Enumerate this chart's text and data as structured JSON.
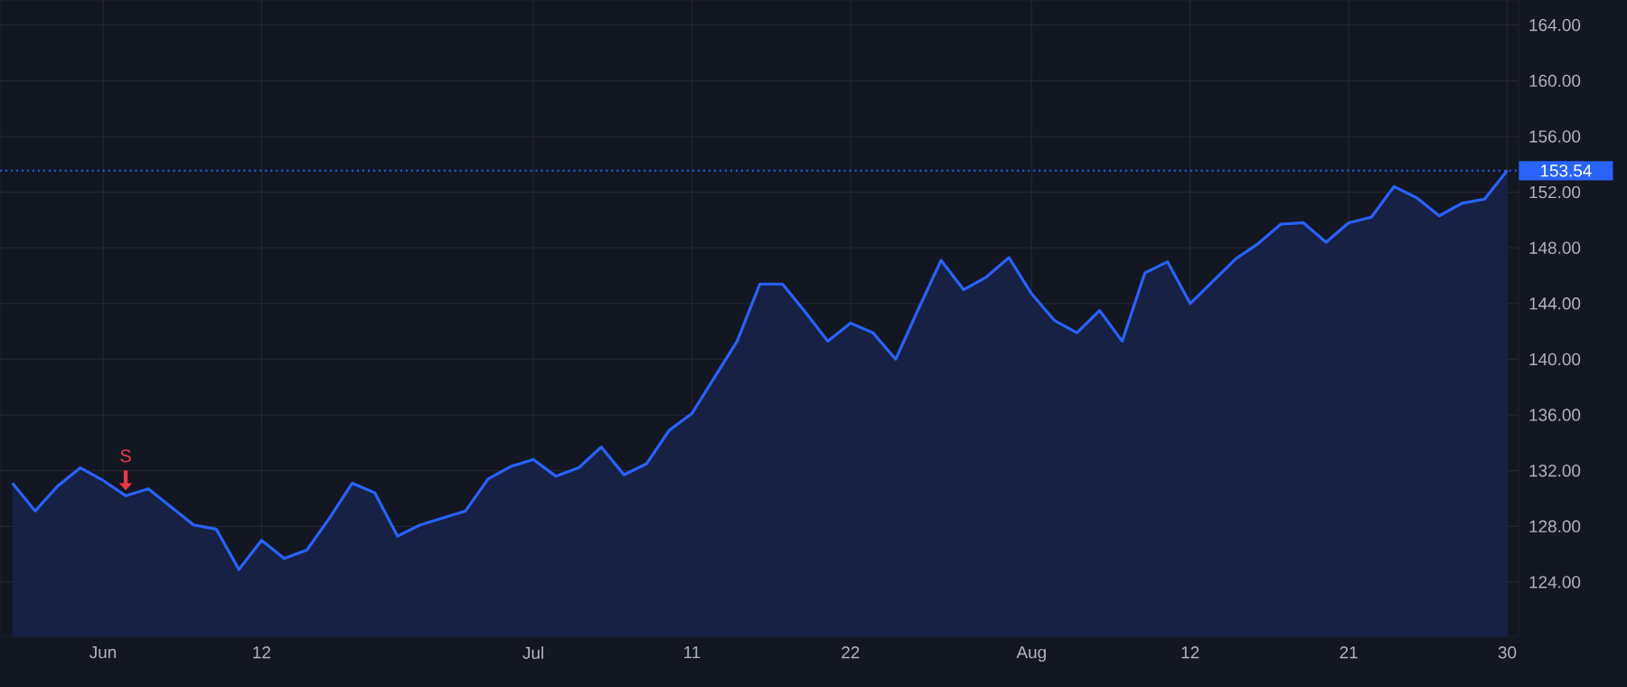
{
  "chart_data": {
    "type": "area",
    "color": "#2962ff",
    "categories": [
      null,
      null,
      null,
      null,
      "Jun",
      null,
      null,
      null,
      null,
      null,
      null,
      "12",
      null,
      null,
      null,
      null,
      null,
      null,
      null,
      null,
      null,
      null,
      null,
      "Jul",
      null,
      null,
      null,
      null,
      null,
      null,
      "11",
      null,
      null,
      null,
      null,
      null,
      null,
      "22",
      null,
      null,
      null,
      null,
      null,
      null,
      null,
      "Aug",
      null,
      null,
      null,
      null,
      null,
      null,
      "12",
      null,
      null,
      null,
      null,
      null,
      null,
      "21",
      null,
      null,
      null,
      null,
      null,
      null,
      "30"
    ],
    "values": [
      131.1,
      129.1,
      130.9,
      132.2,
      131.3,
      130.2,
      130.7,
      129.4,
      128.1,
      127.8,
      124.9,
      127.0,
      125.7,
      126.3,
      128.6,
      131.1,
      130.4,
      127.3,
      128.1,
      128.6,
      129.1,
      131.4,
      132.3,
      132.8,
      131.6,
      132.2,
      133.7,
      131.7,
      132.5,
      134.9,
      136.1,
      138.7,
      141.3,
      145.4,
      145.4,
      143.4,
      141.3,
      142.6,
      141.9,
      140.0,
      143.6,
      147.1,
      145.0,
      145.9,
      147.3,
      144.7,
      142.8,
      141.9,
      143.5,
      141.3,
      146.2,
      147.0,
      144.0,
      145.6,
      147.2,
      148.3,
      149.7,
      149.8,
      148.4,
      149.8,
      150.2,
      152.4,
      151.6,
      150.3,
      151.2,
      151.5,
      153.54
    ],
    "ylim": [
      120.1,
      165.8
    ],
    "yticks": [
      {
        "value": 124,
        "label": "124.00"
      },
      {
        "value": 128,
        "label": "128.00"
      },
      {
        "value": 132,
        "label": "132.00"
      },
      {
        "value": 136,
        "label": "136.00"
      },
      {
        "value": 140,
        "label": "140.00"
      },
      {
        "value": 144,
        "label": "144.00"
      },
      {
        "value": 148,
        "label": "148.00"
      },
      {
        "value": 152,
        "label": "152.00"
      },
      {
        "value": 156,
        "label": "156.00"
      },
      {
        "value": 160,
        "label": "160.00"
      },
      {
        "value": 164,
        "label": "164.00"
      }
    ],
    "ref_lines": [
      {
        "axis": "y",
        "value": 153.54,
        "label": "153.54",
        "color": "#2962ff",
        "line_style": "dotted"
      }
    ],
    "annotations": [
      {
        "text": "S",
        "y": 130.2
      }
    ],
    "grid": true,
    "marker": "none"
  }
}
